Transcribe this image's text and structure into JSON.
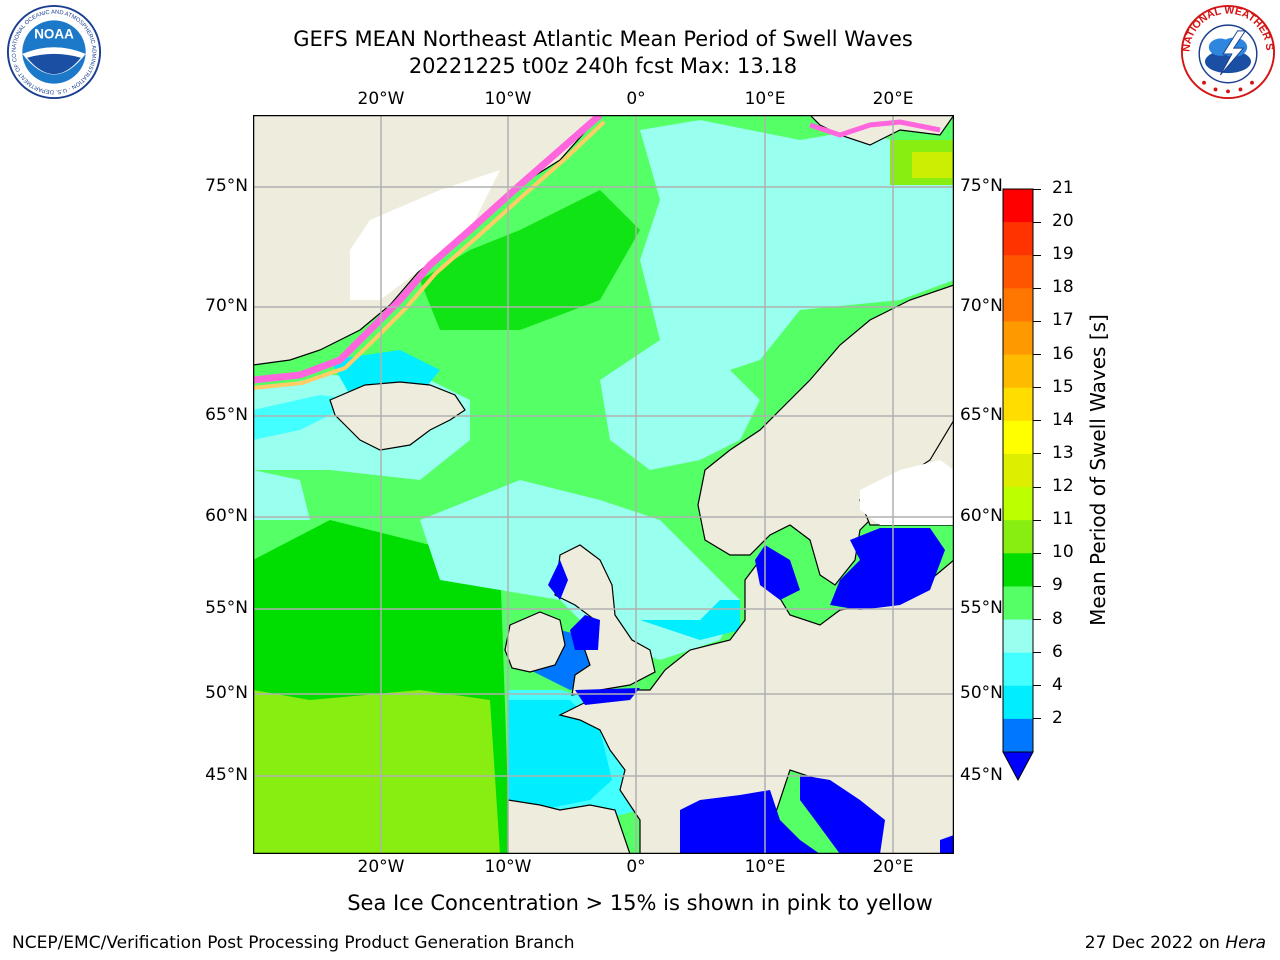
{
  "header": {
    "title_line1": "GEFS MEAN Northeast Atlantic Mean Period of Swell Waves",
    "title_line2": "20221225 t00z 240h fcst   Max: 13.18"
  },
  "logos": {
    "left": "NOAA",
    "left_ring_text": "NATIONAL OCEANIC AND ATMOSPHERIC ADMINISTRATION · U.S. DEPARTMENT OF COMMERCE",
    "right_ring_text": "NATIONAL WEATHER SERVICE"
  },
  "map": {
    "lon_labels": [
      "20°W",
      "10°W",
      "0°",
      "10°E",
      "20°E"
    ],
    "lat_labels": [
      "75°N",
      "70°N",
      "65°N",
      "60°N",
      "55°N",
      "50°N",
      "45°N"
    ],
    "colors": {
      "land": "#eeecdd",
      "ice_free_white": "#ffffff",
      "grid": "#b0b0b0"
    }
  },
  "colorbar": {
    "label": "Mean Period of Swell Waves [s]",
    "ticks": [
      "21",
      "20",
      "19",
      "18",
      "17",
      "16",
      "15",
      "14",
      "13",
      "12",
      "11",
      "10",
      "9",
      "8",
      "6",
      "4",
      "2"
    ],
    "colors_top_to_bottom": [
      "#ff0000",
      "#ff3300",
      "#ff5500",
      "#ff7700",
      "#ff9900",
      "#ffbb00",
      "#ffdd00",
      "#ffff00",
      "#ddee00",
      "#bbff00",
      "#88ee11",
      "#00dd00",
      "#55ff66",
      "#99ffee",
      "#44ffff",
      "#00eeff",
      "#0077ff"
    ],
    "extend_color": "#0000ff"
  },
  "notes": {
    "ice": "Sea Ice Concentration > 15% is shown in pink to yellow"
  },
  "footer": {
    "left": "NCEP/EMC/Verification Post Processing Product Generation Branch",
    "date": "27 Dec 2022 on",
    "machine": "Hera"
  }
}
